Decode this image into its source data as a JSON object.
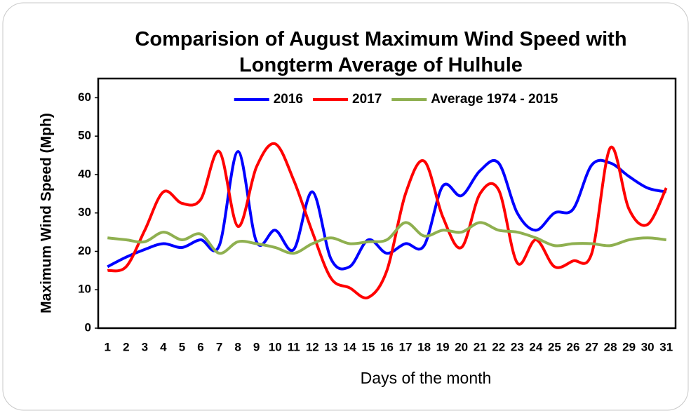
{
  "chart_data": {
    "type": "line",
    "title": "Comparision of August Maximum Wind Speed with Longterm Average of Hulhule",
    "x_label": "Days of the month",
    "y_label": "Maximum Wind Speed (Mph)",
    "categories": [
      "1",
      "2",
      "3",
      "4",
      "5",
      "6",
      "7",
      "8",
      "9",
      "10",
      "11",
      "12",
      "13",
      "14",
      "15",
      "16",
      "17",
      "18",
      "19",
      "20",
      "21",
      "22",
      "23",
      "24",
      "25",
      "26",
      "27",
      "28",
      "29",
      "30",
      "31"
    ],
    "series": [
      {
        "name": "2016",
        "color": "#0000ff",
        "values": [
          16,
          18.5,
          20.5,
          22,
          21,
          23,
          21.5,
          46,
          22.5,
          25.5,
          20.5,
          35.5,
          18,
          16,
          23,
          19.5,
          22,
          21.5,
          37,
          34.5,
          41,
          43,
          30,
          25.5,
          30,
          31,
          42.5,
          43,
          39.5,
          36.5,
          35.5
        ]
      },
      {
        "name": "2017",
        "color": "#ff0000",
        "values": [
          15,
          16,
          25.5,
          35.5,
          32.5,
          33.5,
          46,
          26.5,
          42,
          48,
          38.5,
          25,
          13,
          10.5,
          8,
          15,
          35,
          43.5,
          29,
          21,
          35,
          36,
          17,
          23,
          16,
          17.5,
          19.5,
          47,
          31,
          27,
          36.5
        ]
      },
      {
        "name": "Average 1974 - 2015",
        "color": "#8fb050",
        "values": [
          23.5,
          23,
          22.5,
          25,
          23,
          24.5,
          19.5,
          22.5,
          22,
          21,
          19.5,
          22,
          23.5,
          22,
          22.5,
          23,
          27.5,
          24,
          25.5,
          25,
          27.5,
          25.5,
          25,
          23.5,
          21.5,
          22,
          22,
          21.5,
          23,
          23.5,
          23
        ]
      }
    ],
    "ylim": [
      0,
      65
    ],
    "yticks": [
      0,
      10,
      20,
      30,
      40,
      50,
      60
    ],
    "grid": false,
    "legend": "top"
  }
}
